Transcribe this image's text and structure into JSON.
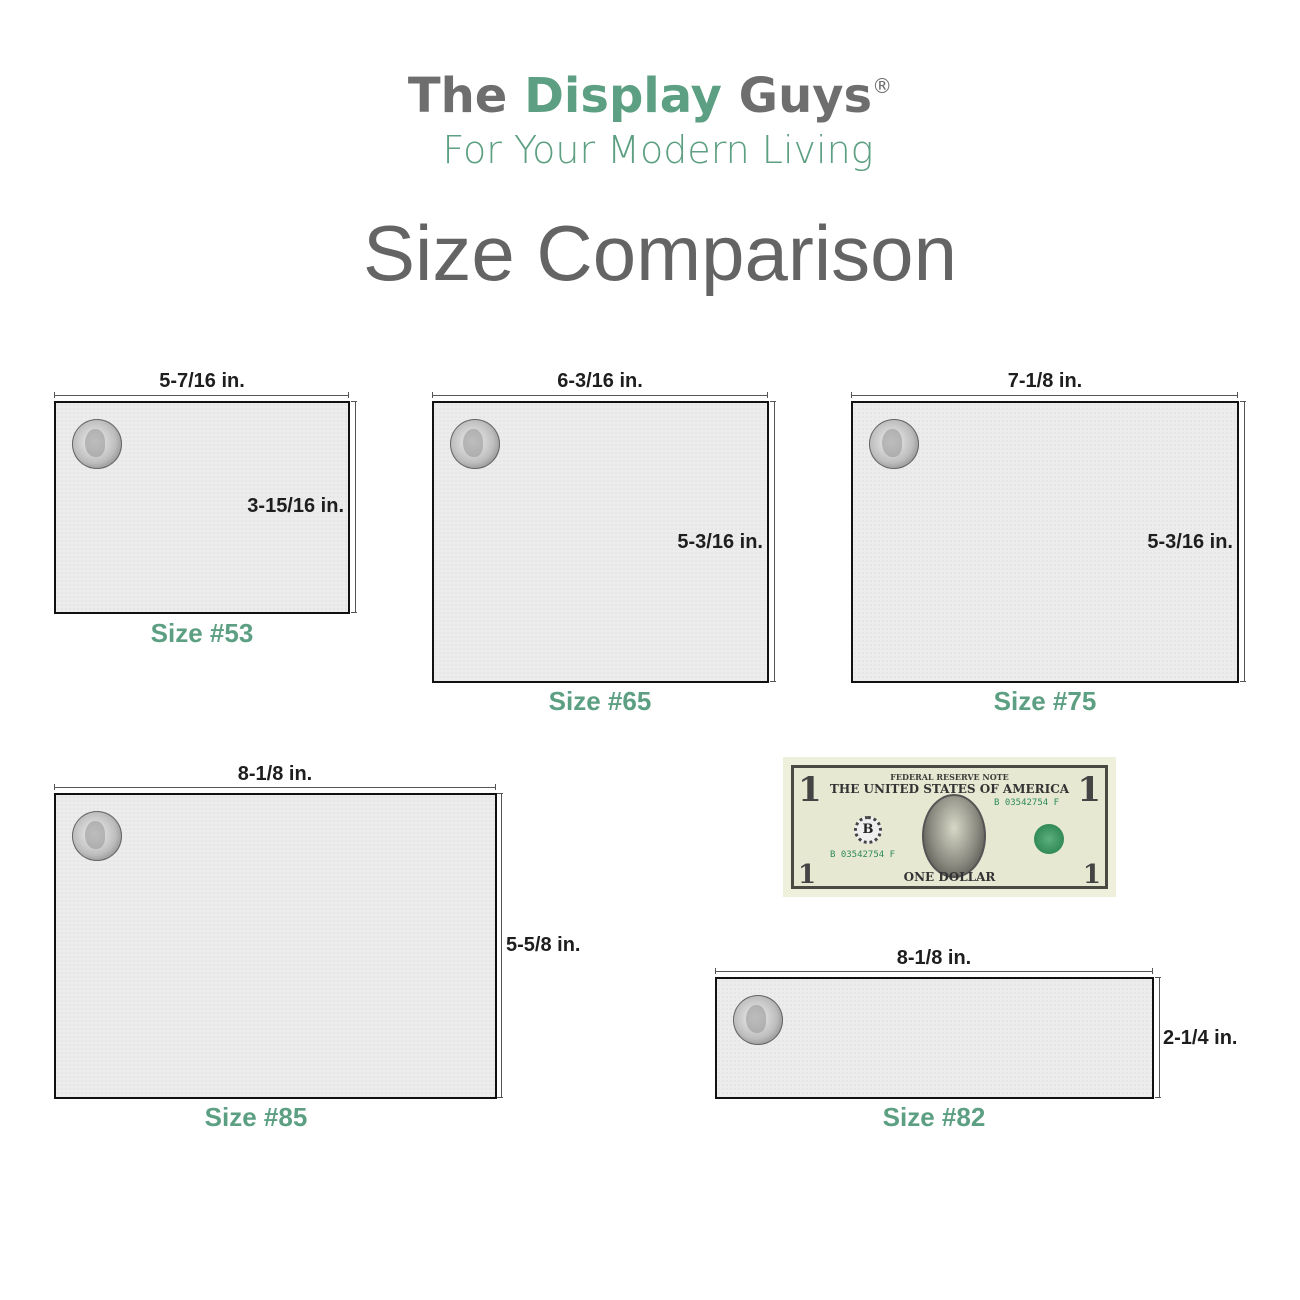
{
  "brand": {
    "name_part1": "The ",
    "name_part2": "Display",
    "name_part3": " Guys",
    "registered": "®",
    "tagline": "For Your Modern Living"
  },
  "title": "Size Comparison",
  "colors": {
    "brand_green": "#5c9f82",
    "brand_gray": "#6e6e6e",
    "text_dark": "#1e1e1e"
  },
  "items": [
    {
      "caption": "Size #53",
      "width": "5-7/16 in.",
      "height": "3-15/16 in."
    },
    {
      "caption": "Size #65",
      "width": "6-3/16 in.",
      "height": "5-3/16 in."
    },
    {
      "caption": "Size #75",
      "width": "7-1/8 in.",
      "height": "5-3/16 in."
    },
    {
      "caption": "Size #85",
      "width": "8-1/8 in.",
      "height": "5-5/8 in."
    },
    {
      "caption": "Size #82",
      "width": "8-1/8 in.",
      "height": "2-1/4 in."
    }
  ],
  "reference_icons": {
    "coin": "quarter-coin-icon",
    "bill": "one-dollar-bill"
  },
  "bill": {
    "header": "FEDERAL RESERVE NOTE",
    "country": "THE UNITED STATES OF AMERICA",
    "denomination": "ONE DOLLAR",
    "serial": "B 03542754 F",
    "bank_letter": "B",
    "numeral": "1"
  }
}
